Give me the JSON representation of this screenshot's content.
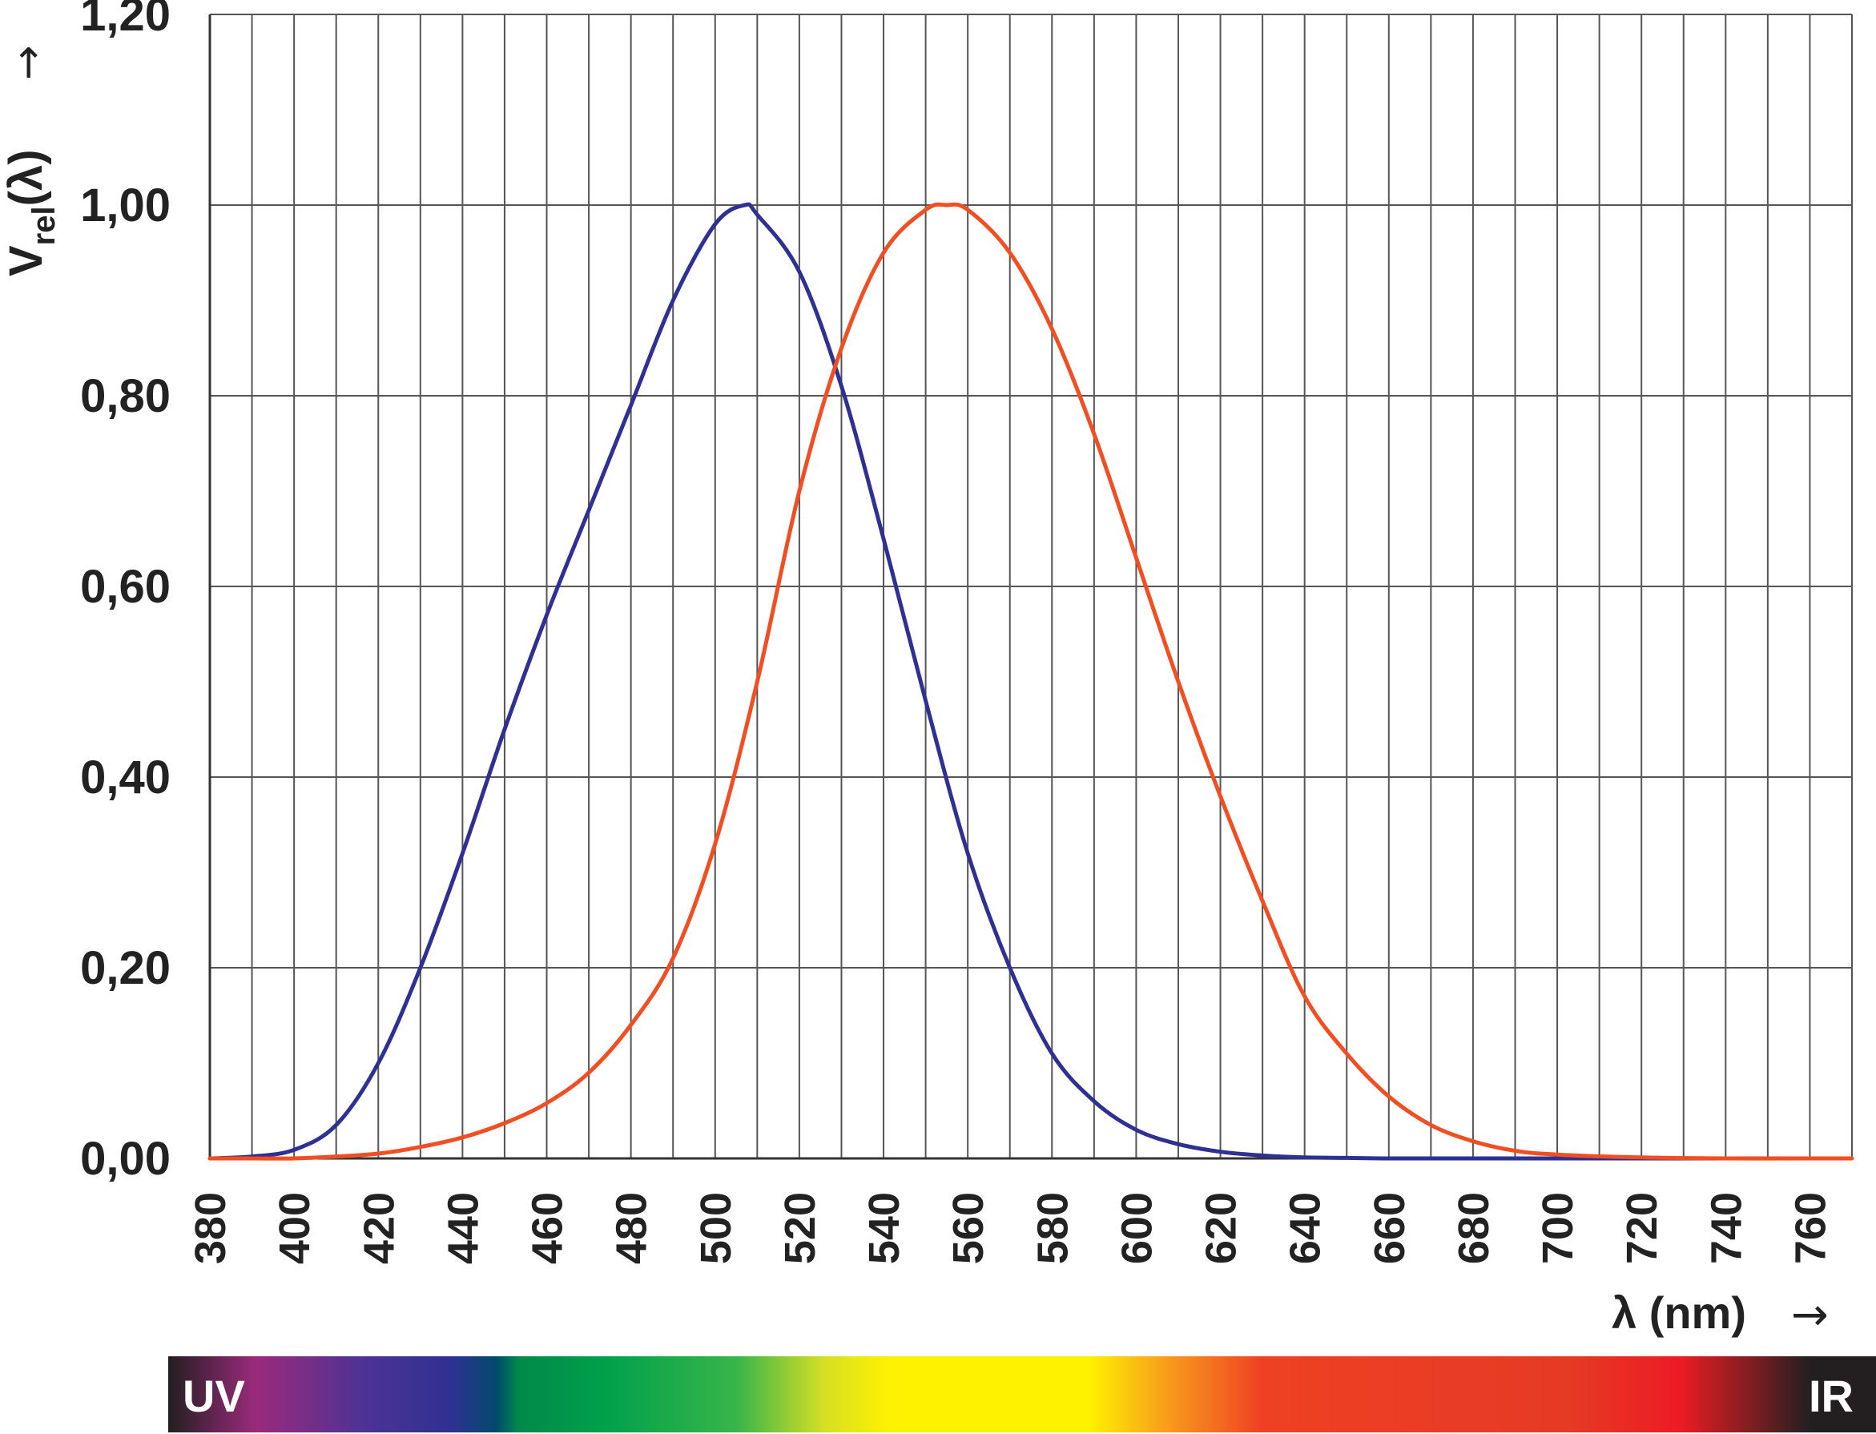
{
  "chart_data": {
    "type": "line",
    "ylabel": {
      "main": "V",
      "subscript": "rel",
      "suffix": "(λ)",
      "arrow": "→"
    },
    "xlabel": {
      "text": "λ (nm)",
      "arrow": "→"
    },
    "xlim": [
      380,
      770
    ],
    "ylim": [
      0,
      1.2
    ],
    "x_ticks": [
      380,
      400,
      420,
      440,
      460,
      480,
      500,
      520,
      540,
      560,
      580,
      600,
      620,
      640,
      660,
      680,
      700,
      720,
      740,
      760
    ],
    "y_ticks": [
      "0,00",
      "0,20",
      "0,40",
      "0,60",
      "0,80",
      "1,00",
      "1,20"
    ],
    "y_tick_values": [
      0,
      0.2,
      0.4,
      0.6,
      0.8,
      1.0,
      1.2
    ],
    "grid": {
      "vertical_every_nm": 10,
      "horizontal_every": 0.2
    },
    "series": [
      {
        "color": "#2e3192",
        "x": [
          380,
          390,
          400,
          410,
          420,
          430,
          440,
          450,
          460,
          470,
          480,
          490,
          500,
          507,
          510,
          520,
          530,
          540,
          550,
          560,
          570,
          580,
          590,
          600,
          610,
          620,
          630,
          640,
          650,
          660,
          680,
          700,
          720,
          740,
          760
        ],
        "y": [
          0.0,
          0.002,
          0.009,
          0.035,
          0.1,
          0.2,
          0.32,
          0.45,
          0.57,
          0.68,
          0.79,
          0.9,
          0.98,
          1.0,
          0.99,
          0.93,
          0.81,
          0.65,
          0.48,
          0.32,
          0.2,
          0.11,
          0.06,
          0.03,
          0.015,
          0.007,
          0.003,
          0.001,
          0.0005,
          0.0,
          0.0,
          0.0,
          0.0,
          0.0,
          0.0
        ]
      },
      {
        "color": "#f04e23",
        "x": [
          380,
          390,
          400,
          410,
          420,
          430,
          440,
          450,
          460,
          470,
          480,
          490,
          500,
          510,
          520,
          530,
          540,
          550,
          555,
          560,
          570,
          580,
          590,
          600,
          610,
          620,
          630,
          640,
          650,
          660,
          670,
          680,
          690,
          700,
          720,
          740,
          760,
          770
        ],
        "y": [
          0.0,
          0.0,
          0.0,
          0.002,
          0.005,
          0.012,
          0.022,
          0.037,
          0.058,
          0.09,
          0.14,
          0.21,
          0.33,
          0.5,
          0.7,
          0.85,
          0.95,
          0.995,
          1.0,
          0.995,
          0.95,
          0.87,
          0.76,
          0.63,
          0.5,
          0.38,
          0.27,
          0.17,
          0.11,
          0.065,
          0.035,
          0.018,
          0.008,
          0.004,
          0.001,
          0.0,
          0.0,
          0.0
        ]
      }
    ]
  },
  "spectrum_band": {
    "left_label": "UV",
    "right_label": "IR",
    "stops": [
      {
        "x": 380,
        "color": "#231f20"
      },
      {
        "x": 400,
        "color": "#9b2a7c"
      },
      {
        "x": 425,
        "color": "#4d3294"
      },
      {
        "x": 445,
        "color": "#2e3192"
      },
      {
        "x": 455,
        "color": "#004b6b"
      },
      {
        "x": 460,
        "color": "#00894a"
      },
      {
        "x": 480,
        "color": "#00a14b"
      },
      {
        "x": 510,
        "color": "#39b54a"
      },
      {
        "x": 530,
        "color": "#d7df23"
      },
      {
        "x": 545,
        "color": "#fff200"
      },
      {
        "x": 590,
        "color": "#fff200"
      },
      {
        "x": 610,
        "color": "#f7941d"
      },
      {
        "x": 630,
        "color": "#ef4023"
      },
      {
        "x": 700,
        "color": "#e53a24"
      },
      {
        "x": 725,
        "color": "#ed1c24"
      },
      {
        "x": 755,
        "color": "#231f20"
      }
    ]
  }
}
